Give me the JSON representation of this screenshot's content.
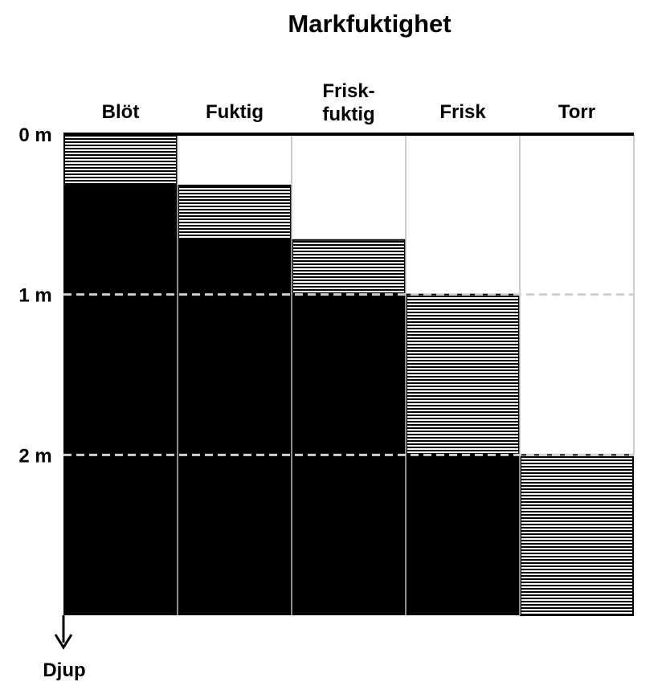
{
  "title": "Markfuktighet",
  "columns": [
    {
      "label_lines": [
        "Blöt"
      ]
    },
    {
      "label_lines": [
        "Fuktig"
      ]
    },
    {
      "label_lines": [
        "Frisk-",
        "fuktig"
      ]
    },
    {
      "label_lines": [
        "Frisk"
      ]
    },
    {
      "label_lines": [
        "Torr"
      ]
    }
  ],
  "depth_labels": [
    "0 m",
    "1 m",
    "2 m"
  ],
  "axis_label": "Djup",
  "chart_data": {
    "type": "diagram",
    "depth_unit": "m",
    "depth_range": [
      0,
      3
    ],
    "layers": [
      {
        "column": "Blöt",
        "striped_from": 0.0,
        "striped_to": 0.32,
        "solid_from": 0.32,
        "solid_to": 3
      },
      {
        "column": "Fuktig",
        "striped_from": 0.32,
        "striped_to": 0.66,
        "solid_from": 0.66,
        "solid_to": 3
      },
      {
        "column": "Frisk-fuktig",
        "striped_from": 0.66,
        "striped_to": 1.0,
        "solid_from": 1.0,
        "solid_to": 3
      },
      {
        "column": "Frisk",
        "striped_from": 1.0,
        "striped_to": 2.0,
        "solid_from": 2.0,
        "solid_to": 3
      },
      {
        "column": "Torr",
        "striped_from": 2.0,
        "striped_to": 3.0,
        "solid_from": null,
        "solid_to": null
      }
    ],
    "reference_lines_depth": [
      1,
      2
    ],
    "reference_line_style": "dashed"
  }
}
